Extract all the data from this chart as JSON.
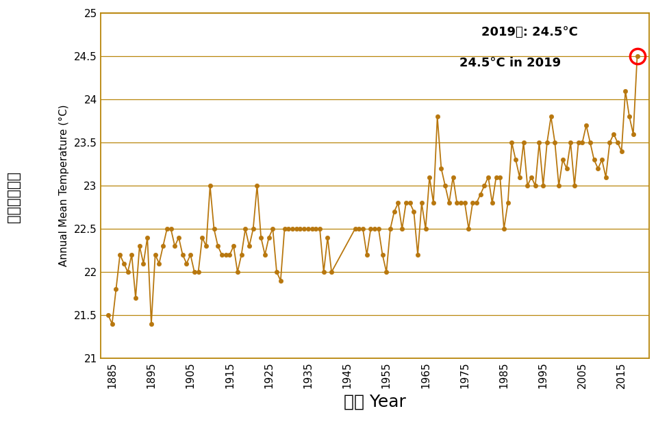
{
  "hko_data": {
    "1884": 21.5,
    "1885": 21.4,
    "1886": 21.8,
    "1887": 22.2,
    "1888": 22.1,
    "1889": 22.0,
    "1890": 22.2,
    "1891": 21.7,
    "1892": 22.3,
    "1893": 22.1,
    "1894": 22.4,
    "1895": 21.4,
    "1896": 22.2,
    "1897": 22.1,
    "1898": 22.3,
    "1899": 22.5,
    "1900": 22.5,
    "1901": 22.3,
    "1902": 22.4,
    "1903": 22.2,
    "1904": 22.1,
    "1905": 22.2,
    "1906": 22.0,
    "1907": 22.0,
    "1908": 22.4,
    "1909": 22.3,
    "1910": 23.0,
    "1911": 22.5,
    "1912": 22.3,
    "1913": 22.2,
    "1914": 22.2,
    "1915": 22.2,
    "1916": 22.3,
    "1917": 22.0,
    "1918": 22.2,
    "1919": 22.5,
    "1920": 22.3,
    "1921": 22.5,
    "1922": 23.0,
    "1923": 22.4,
    "1924": 22.2,
    "1925": 22.4,
    "1926": 22.5,
    "1927": 22.0,
    "1928": 21.9,
    "1929": 22.5,
    "1930": 22.5,
    "1931": 22.5,
    "1932": 22.5,
    "1933": 22.5,
    "1934": 22.5,
    "1935": 22.5,
    "1936": 22.5,
    "1937": 22.5,
    "1938": 22.5,
    "1939": 22.0,
    "1940": 22.4,
    "1941": 22.0,
    "1947": 22.5,
    "1948": 22.5,
    "1949": 22.5,
    "1950": 22.2,
    "1951": 22.5,
    "1952": 22.5,
    "1953": 22.5,
    "1954": 22.2,
    "1955": 22.0,
    "1956": 22.5,
    "1957": 22.7,
    "1958": 22.8,
    "1959": 22.5,
    "1960": 22.8,
    "1961": 22.8,
    "1962": 22.7,
    "1963": 22.2,
    "1964": 22.8,
    "1965": 22.5,
    "1966": 23.1,
    "1967": 22.8,
    "1968": 23.8,
    "1969": 23.2,
    "1970": 23.0,
    "1971": 22.8,
    "1972": 23.1,
    "1973": 22.8,
    "1974": 22.8,
    "1975": 22.8,
    "1976": 22.5,
    "1977": 22.8,
    "1978": 22.8,
    "1979": 22.9,
    "1980": 23.0,
    "1981": 23.1,
    "1982": 22.8,
    "1983": 23.1,
    "1984": 23.1,
    "1985": 22.5,
    "1986": 22.8,
    "1987": 23.5,
    "1988": 23.3,
    "1989": 23.1,
    "1990": 23.5,
    "1991": 23.0,
    "1992": 23.1,
    "1993": 23.0,
    "1994": 23.5,
    "1995": 23.0,
    "1996": 23.5,
    "1997": 23.8,
    "1998": 23.5,
    "1999": 23.0,
    "2000": 23.3,
    "2001": 23.2,
    "2002": 23.5,
    "2003": 23.0,
    "2004": 23.5,
    "2005": 23.5,
    "2006": 23.7,
    "2007": 23.5,
    "2008": 23.3,
    "2009": 23.2,
    "2010": 23.3,
    "2011": 23.1,
    "2012": 23.5,
    "2013": 23.6,
    "2014": 23.5,
    "2015": 23.4,
    "2016": 24.1,
    "2017": 23.8,
    "2018": 23.6,
    "2019": 24.5
  },
  "line_color": "#B8770E",
  "marker_color": "#B8770E",
  "highlight_year": 2019,
  "highlight_temp": 24.5,
  "highlight_circle_color": "red",
  "annotation1": "2019年: 24.5°C",
  "annotation2": "24.5°C in 2019",
  "ylabel_chinese": "全年平均氣温",
  "ylabel_english": "Annual Mean Temperature (°C)",
  "xlabel": "年份 Year",
  "ylim": [
    21.0,
    25.0
  ],
  "ytick_labels": [
    "21",
    "21.5",
    "22",
    "22.5",
    "23",
    "23.5",
    "24",
    "24.5",
    "25"
  ],
  "ytick_vals": [
    21.0,
    21.5,
    22.0,
    22.5,
    23.0,
    23.5,
    24.0,
    24.5,
    25.0
  ],
  "xticks": [
    1885,
    1895,
    1905,
    1915,
    1925,
    1935,
    1945,
    1955,
    1965,
    1975,
    1985,
    1995,
    2005,
    2015
  ],
  "grid_color": "#B8860B",
  "spine_color": "#B8860B",
  "background_color": "white"
}
